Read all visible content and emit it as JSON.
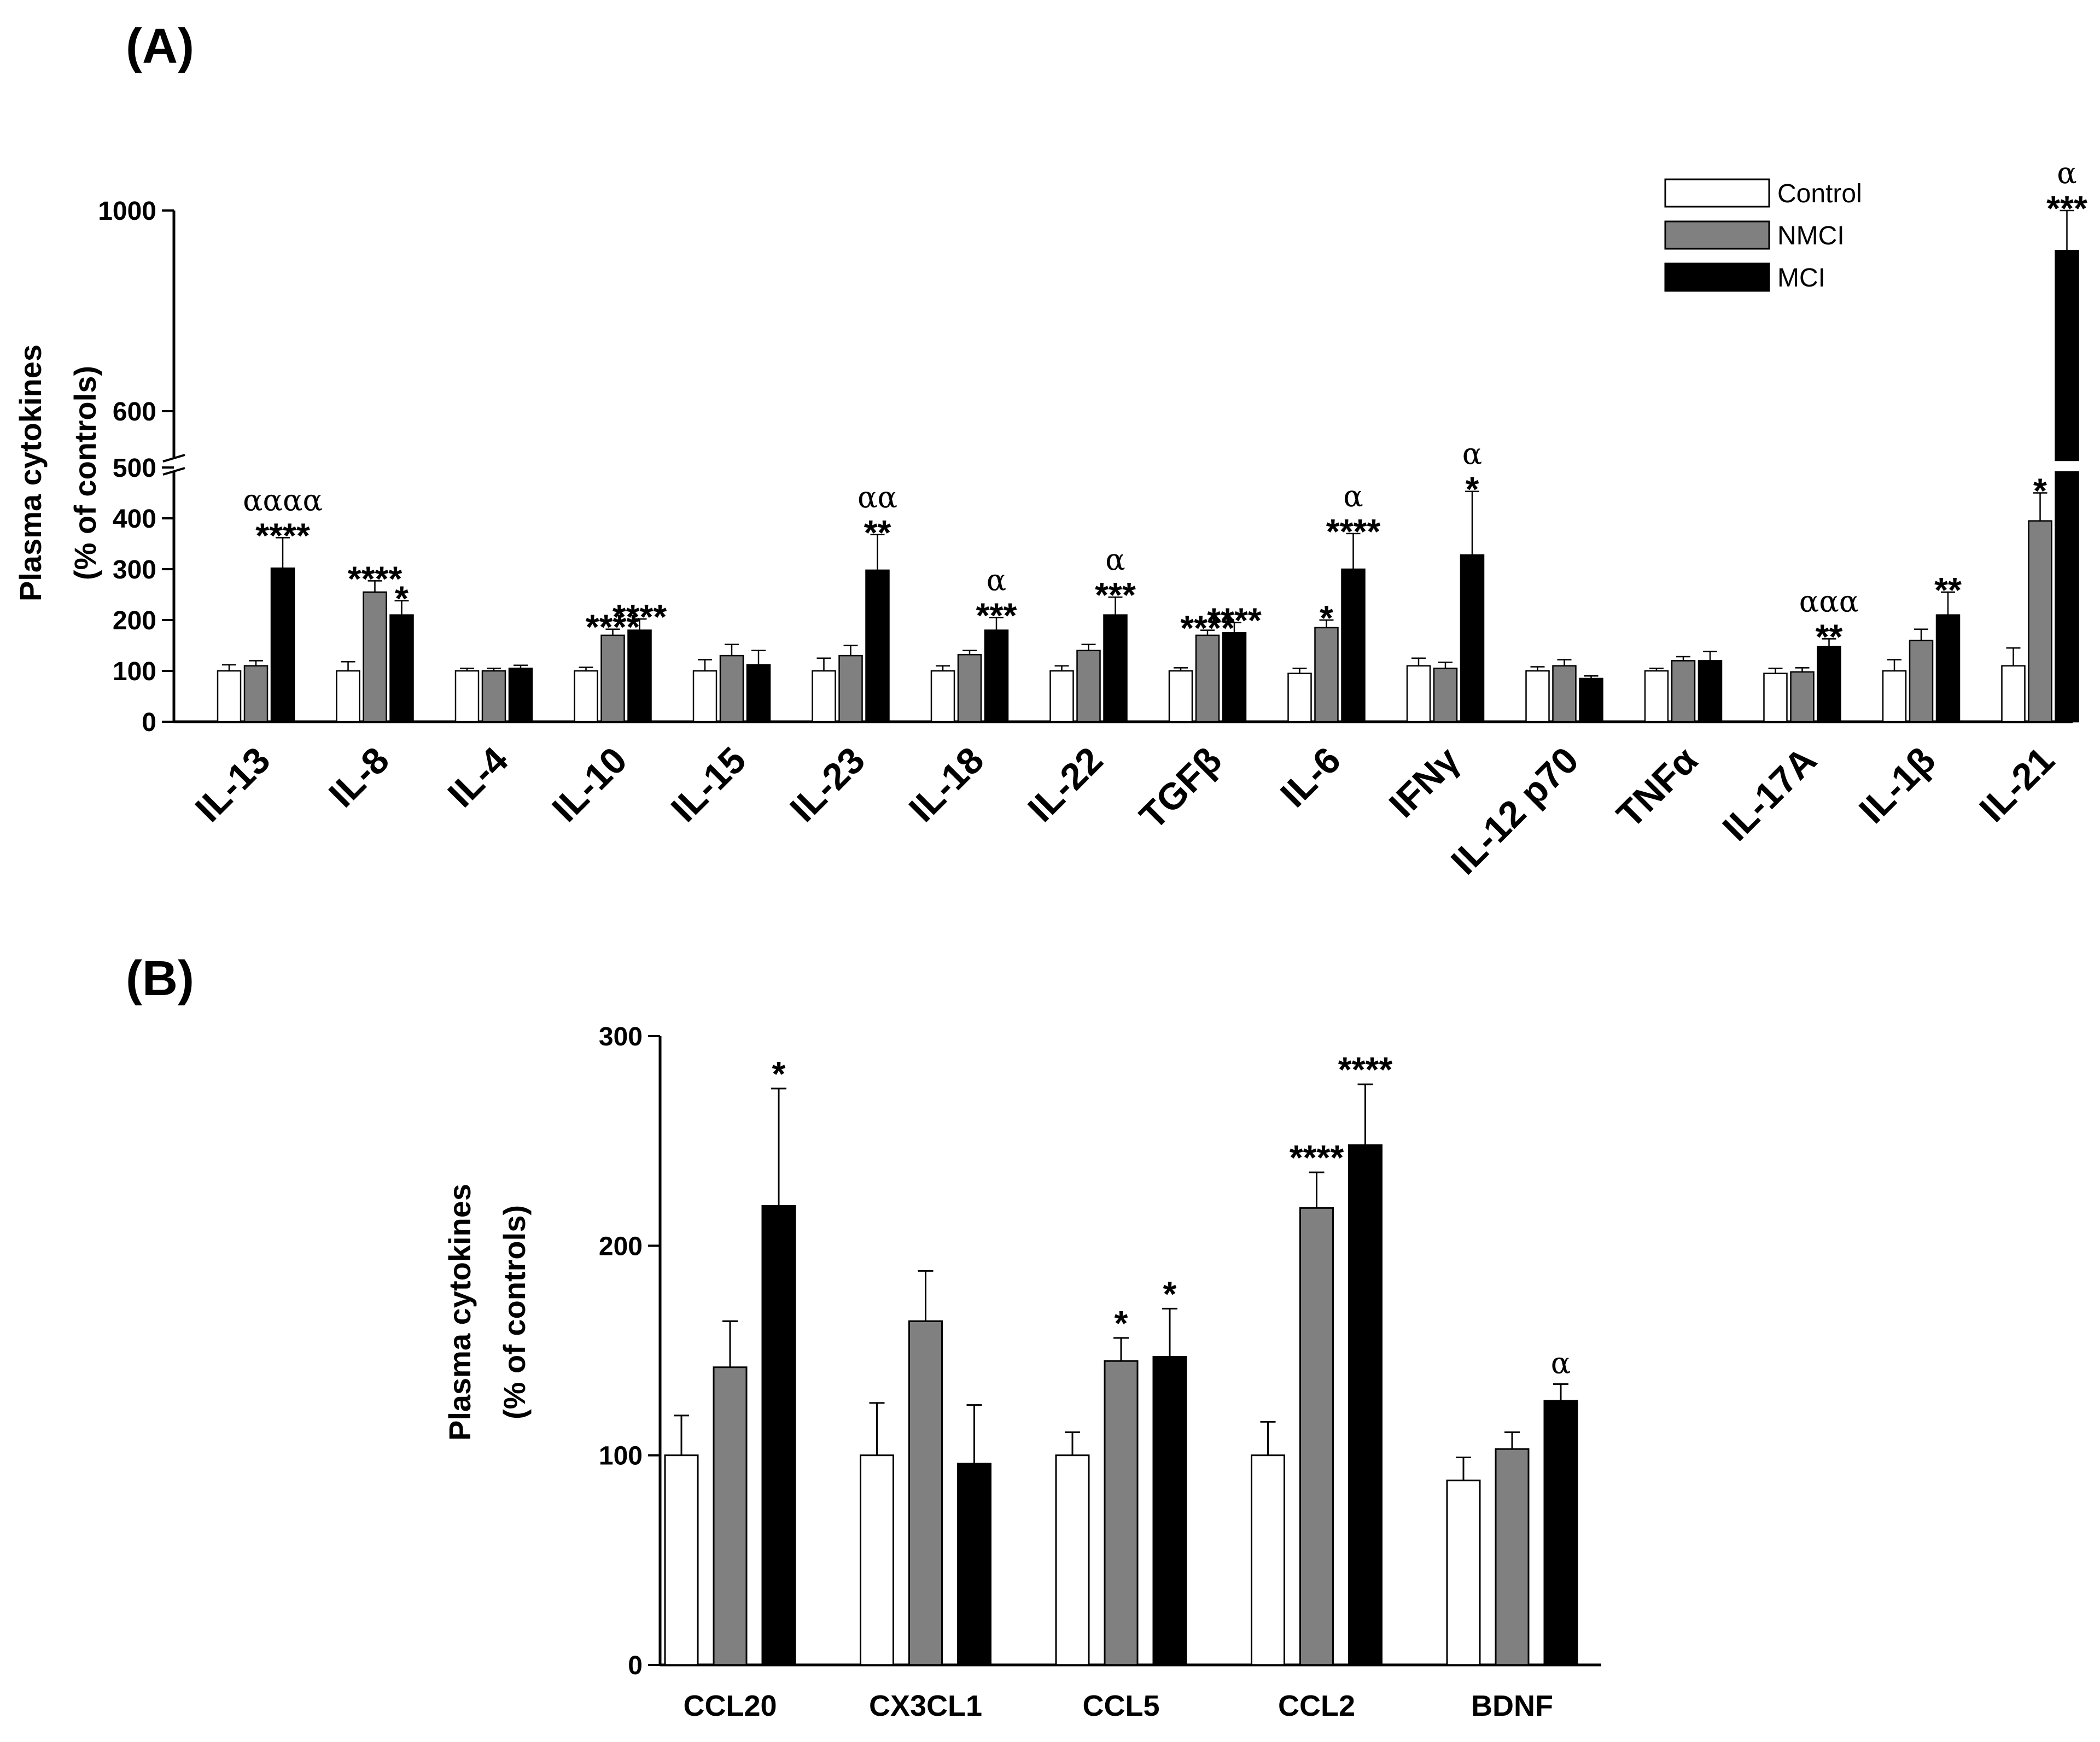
{
  "colors": {
    "control": "#ffffff",
    "nmci": "#808080",
    "mci": "#000000",
    "axis": "#000000"
  },
  "chart_data": [
    {
      "panel": "(A)",
      "type": "bar",
      "ylabel_line1": "Plasma cytokines",
      "ylabel_line2": "(% of controls)",
      "axis_break": [
        500,
        550
      ],
      "ylim": [
        0,
        1000
      ],
      "yticks": [
        0,
        100,
        200,
        300,
        400,
        500,
        600,
        1000
      ],
      "legend": [
        "Control",
        "NMCI",
        "MCI"
      ],
      "legend_position": "top-right",
      "categories": [
        "IL-13",
        "IL-8",
        "IL-4",
        "IL-10",
        "IL-15",
        "IL-23",
        "IL-18",
        "IL-22",
        "TGFβ",
        "IL-6",
        "IFNγ",
        "IL-12 p70",
        "TNFα",
        "IL-17A",
        "IL-1β",
        "IL-21"
      ],
      "series": [
        {
          "name": "Control",
          "values": [
            100,
            100,
            100,
            100,
            100,
            100,
            100,
            100,
            100,
            95,
            110,
            100,
            100,
            95,
            100,
            110
          ],
          "errors": [
            12,
            18,
            5,
            7,
            22,
            25,
            10,
            10,
            6,
            10,
            15,
            8,
            5,
            10,
            22,
            35
          ]
        },
        {
          "name": "NMCI",
          "values": [
            110,
            255,
            100,
            170,
            130,
            130,
            132,
            140,
            170,
            185,
            105,
            110,
            120,
            98,
            160,
            395
          ],
          "errors": [
            10,
            22,
            5,
            12,
            22,
            20,
            8,
            12,
            10,
            15,
            12,
            12,
            8,
            8,
            22,
            55
          ]
        },
        {
          "name": "MCI",
          "values": [
            302,
            210,
            105,
            180,
            112,
            298,
            180,
            210,
            175,
            300,
            328,
            85,
            120,
            148,
            210,
            920
          ],
          "errors": [
            60,
            28,
            6,
            22,
            28,
            70,
            25,
            35,
            20,
            70,
            125,
            5,
            18,
            15,
            45,
            80
          ]
        }
      ],
      "annotations": [
        {
          "category": "IL-13",
          "series": "MCI",
          "stars": "****",
          "alpha": "αααα"
        },
        {
          "category": "IL-8",
          "series": "NMCI",
          "stars": "****",
          "alpha": ""
        },
        {
          "category": "IL-8",
          "series": "MCI",
          "stars": "*",
          "alpha": ""
        },
        {
          "category": "IL-10",
          "series": "NMCI",
          "stars": "****",
          "alpha": ""
        },
        {
          "category": "IL-10",
          "series": "MCI",
          "stars": "****",
          "alpha": ""
        },
        {
          "category": "IL-23",
          "series": "MCI",
          "stars": "**",
          "alpha": "αα"
        },
        {
          "category": "IL-18",
          "series": "MCI",
          "stars": "***",
          "alpha": "α"
        },
        {
          "category": "IL-22",
          "series": "MCI",
          "stars": "***",
          "alpha": "α"
        },
        {
          "category": "TGFβ",
          "series": "NMCI",
          "stars": "****",
          "alpha": ""
        },
        {
          "category": "TGFβ",
          "series": "MCI",
          "stars": "****",
          "alpha": ""
        },
        {
          "category": "IL-6",
          "series": "NMCI",
          "stars": "*",
          "alpha": ""
        },
        {
          "category": "IL-6",
          "series": "MCI",
          "stars": "****",
          "alpha": "α"
        },
        {
          "category": "IFNγ",
          "series": "MCI",
          "stars": "*",
          "alpha": "α"
        },
        {
          "category": "IL-17A",
          "series": "MCI",
          "stars": "**",
          "alpha": "ααα"
        },
        {
          "category": "IL-1β",
          "series": "MCI",
          "stars": "**",
          "alpha": ""
        },
        {
          "category": "IL-21",
          "series": "NMCI",
          "stars": "*",
          "alpha": ""
        },
        {
          "category": "IL-21",
          "series": "MCI",
          "stars": "***",
          "alpha": "α"
        }
      ]
    },
    {
      "panel": "(B)",
      "type": "bar",
      "ylabel_line1": "Plasma cytokines",
      "ylabel_line2": "(% of controls)",
      "ylim": [
        0,
        300
      ],
      "yticks": [
        0,
        100,
        200,
        300
      ],
      "categories": [
        "CCL20",
        "CX3CL1",
        "CCL5",
        "CCL2",
        "BDNF"
      ],
      "series": [
        {
          "name": "Control",
          "values": [
            100,
            100,
            100,
            100,
            88
          ],
          "errors": [
            19,
            25,
            11,
            16,
            11
          ]
        },
        {
          "name": "NMCI",
          "values": [
            142,
            164,
            145,
            218,
            103
          ],
          "errors": [
            22,
            24,
            11,
            17,
            8
          ]
        },
        {
          "name": "MCI",
          "values": [
            219,
            96,
            147,
            248,
            126
          ],
          "errors": [
            56,
            28,
            23,
            29,
            8
          ]
        }
      ],
      "annotations": [
        {
          "category": "CCL20",
          "series": "MCI",
          "stars": "*",
          "alpha": ""
        },
        {
          "category": "CCL5",
          "series": "NMCI",
          "stars": "*",
          "alpha": ""
        },
        {
          "category": "CCL5",
          "series": "MCI",
          "stars": "*",
          "alpha": ""
        },
        {
          "category": "CCL2",
          "series": "NMCI",
          "stars": "****",
          "alpha": ""
        },
        {
          "category": "CCL2",
          "series": "MCI",
          "stars": "****",
          "alpha": ""
        },
        {
          "category": "BDNF",
          "series": "MCI",
          "stars": "",
          "alpha": "α"
        }
      ]
    }
  ]
}
